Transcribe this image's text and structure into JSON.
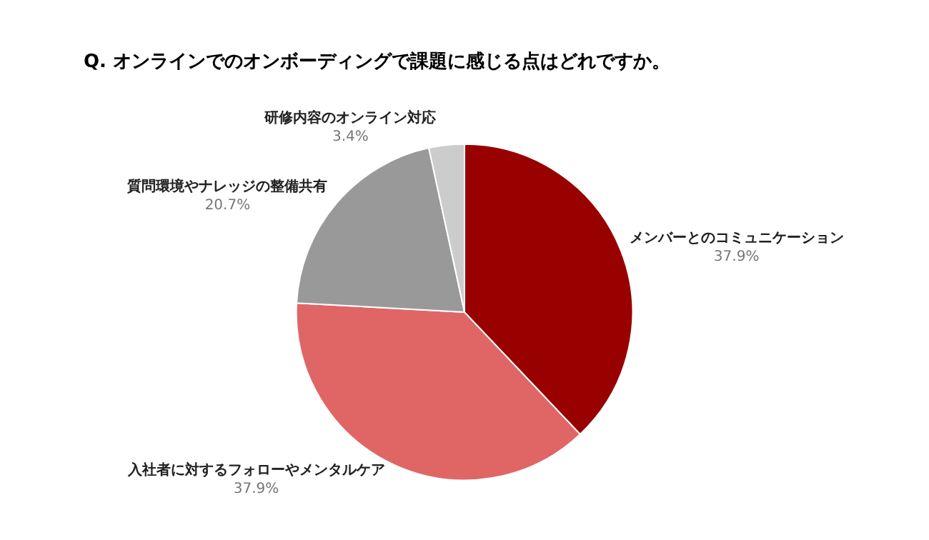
{
  "chart_data": {
    "type": "pie",
    "title": "Q. オンラインでのオンボーディングで課題に感じる点はどれですか。",
    "categories": [
      "メンバーとのコミュニケーション",
      "入社者に対するフォローやメンタルケア",
      "質問環境やナレッジの整備共有",
      "研修内容のオンライン対応"
    ],
    "values": [
      37.9,
      37.9,
      20.7,
      3.4
    ],
    "value_labels": [
      "37.9%",
      "37.9%",
      "20.7%",
      "3.4%"
    ],
    "colors": [
      "#990000",
      "#e06666",
      "#999999",
      "#cccccc"
    ],
    "legend": false
  }
}
